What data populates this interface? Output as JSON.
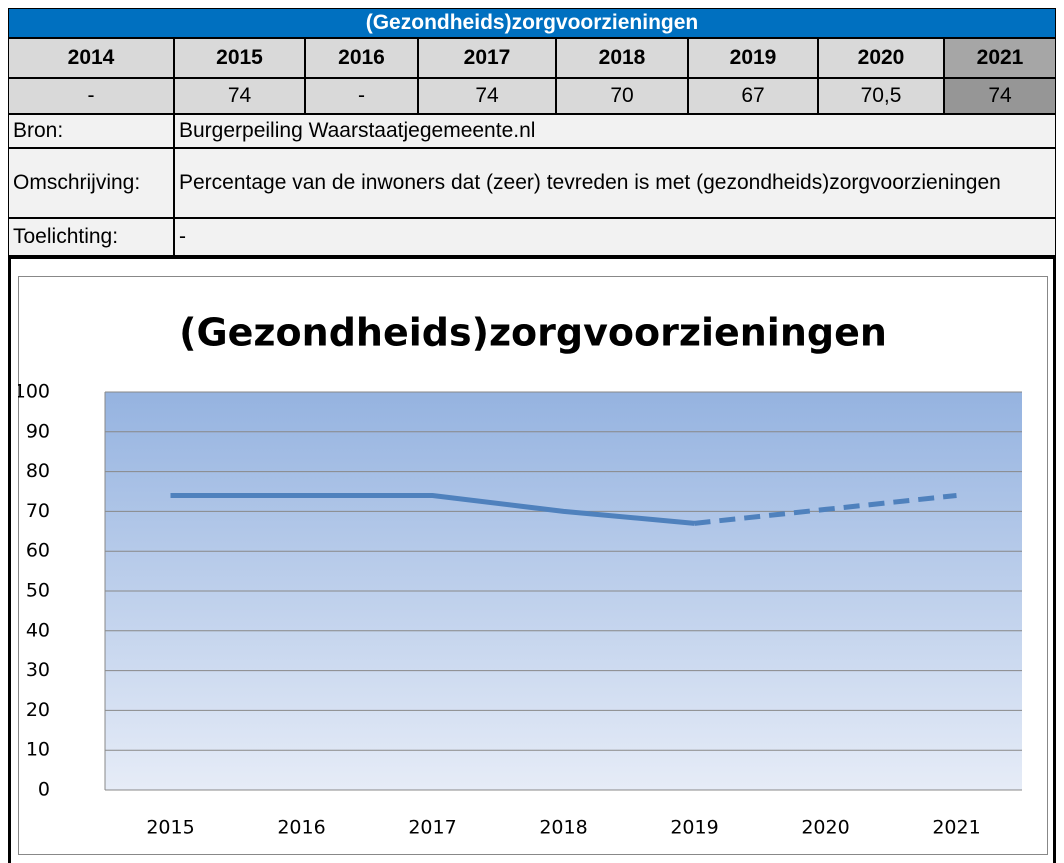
{
  "table": {
    "title": "(Gezondheids)zorgvoorzieningen",
    "years": [
      "2014",
      "2015",
      "2016",
      "2017",
      "2018",
      "2019",
      "2020",
      "2021"
    ],
    "values": [
      "-",
      "74",
      "-",
      "74",
      "70",
      "67",
      "70,5",
      "74"
    ],
    "rows": [
      [
        "Bron:",
        "Burgerpeiling Waarstaatjegemeente.nl"
      ],
      [
        "Omschrijving:",
        "Percentage van de inwoners dat (zeer) tevreden is met (gezondheids)zorgvoorzieningen"
      ],
      [
        "Toelichting:",
        "-"
      ]
    ]
  },
  "chart_data": {
    "type": "line",
    "title": "(Gezondheids)zorgvoorzieningen",
    "categories": [
      "2015",
      "2016",
      "2017",
      "2018",
      "2019",
      "2020",
      "2021"
    ],
    "series": [
      {
        "color": "#4f81bd",
        "dashed": false,
        "values": [
          74,
          74,
          74,
          70,
          67,
          null,
          null
        ]
      },
      {
        "color": "#4f81bd",
        "dashed": true,
        "values": [
          null,
          null,
          null,
          null,
          67,
          70.5,
          74
        ]
      }
    ],
    "ylim": [
      0,
      100
    ],
    "yticks": [
      0,
      10,
      20,
      30,
      40,
      50,
      60,
      70,
      80,
      90,
      100
    ],
    "grid": true
  }
}
